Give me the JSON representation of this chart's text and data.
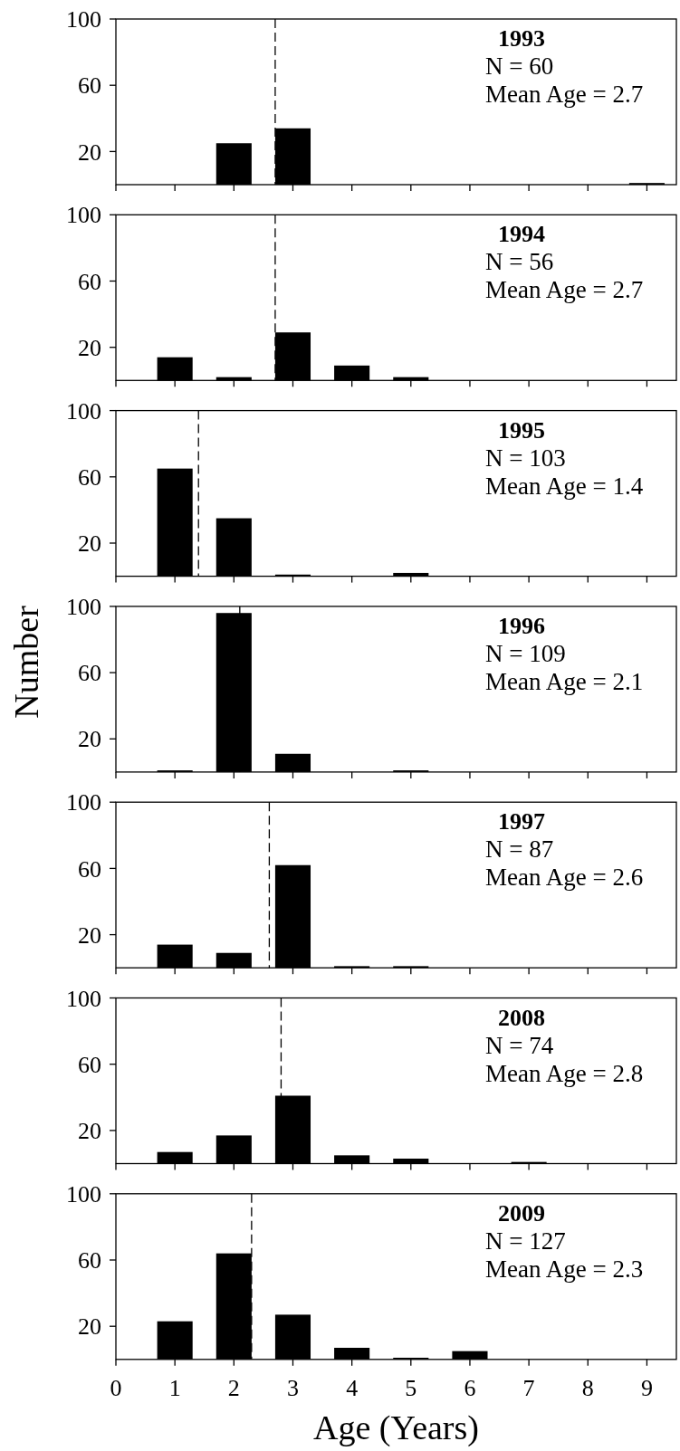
{
  "chart_data": [
    {
      "type": "bar",
      "x": [
        1,
        2,
        3,
        4,
        5,
        6,
        7,
        8,
        9
      ],
      "values": [
        0,
        25,
        34,
        0,
        0,
        0,
        0,
        0,
        1
      ],
      "color": "#000000",
      "xlim": [
        0,
        9.5
      ],
      "xticks": [
        0,
        1,
        2,
        3,
        4,
        5,
        6,
        7,
        8,
        9
      ],
      "ylim": [
        0,
        100
      ],
      "yticks": [
        20,
        60,
        100
      ],
      "tick_labels": "y",
      "grid": false,
      "ref_lines": [
        {
          "axis": "x",
          "value": 2.7,
          "line_style": "dashed"
        }
      ],
      "annotations": [
        "1993",
        "N = 60",
        "Mean Age = 2.7"
      ]
    },
    {
      "type": "bar",
      "x": [
        1,
        2,
        3,
        4,
        5,
        6,
        7,
        8,
        9
      ],
      "values": [
        14,
        2,
        29,
        9,
        2,
        0,
        0,
        0,
        0
      ],
      "color": "#000000",
      "xlim": [
        0,
        9.5
      ],
      "xticks": [
        0,
        1,
        2,
        3,
        4,
        5,
        6,
        7,
        8,
        9
      ],
      "ylim": [
        0,
        100
      ],
      "yticks": [
        20,
        60,
        100
      ],
      "tick_labels": "y",
      "grid": false,
      "ref_lines": [
        {
          "axis": "x",
          "value": 2.7,
          "line_style": "dashed"
        }
      ],
      "annotations": [
        "1994",
        "N = 56",
        "Mean Age = 2.7"
      ]
    },
    {
      "type": "bar",
      "x": [
        1,
        2,
        3,
        4,
        5,
        6,
        7,
        8,
        9
      ],
      "values": [
        65,
        35,
        1,
        0,
        2,
        0,
        0,
        0,
        0
      ],
      "color": "#000000",
      "xlim": [
        0,
        9.5
      ],
      "xticks": [
        0,
        1,
        2,
        3,
        4,
        5,
        6,
        7,
        8,
        9
      ],
      "ylim": [
        0,
        100
      ],
      "yticks": [
        20,
        60,
        100
      ],
      "tick_labels": "y",
      "grid": false,
      "ref_lines": [
        {
          "axis": "x",
          "value": 1.4,
          "line_style": "dashed"
        }
      ],
      "annotations": [
        "1995",
        "N = 103",
        "Mean Age = 1.4"
      ]
    },
    {
      "type": "bar",
      "x": [
        1,
        2,
        3,
        4,
        5,
        6,
        7,
        8,
        9
      ],
      "values": [
        1,
        96,
        11,
        0,
        1,
        0,
        0,
        0,
        0
      ],
      "color": "#000000",
      "xlim": [
        0,
        9.5
      ],
      "xticks": [
        0,
        1,
        2,
        3,
        4,
        5,
        6,
        7,
        8,
        9
      ],
      "ylim": [
        0,
        100
      ],
      "yticks": [
        20,
        60,
        100
      ],
      "tick_labels": "y",
      "grid": false,
      "ylabel": "Number",
      "ref_lines": [
        {
          "axis": "x",
          "value": 2.1,
          "line_style": "dashed"
        }
      ],
      "annotations": [
        "1996",
        "N = 109",
        "Mean Age = 2.1"
      ]
    },
    {
      "type": "bar",
      "x": [
        1,
        2,
        3,
        4,
        5,
        6,
        7,
        8,
        9
      ],
      "values": [
        14,
        9,
        62,
        1,
        1,
        0,
        0,
        0,
        0
      ],
      "color": "#000000",
      "xlim": [
        0,
        9.5
      ],
      "xticks": [
        0,
        1,
        2,
        3,
        4,
        5,
        6,
        7,
        8,
        9
      ],
      "ylim": [
        0,
        100
      ],
      "yticks": [
        20,
        60,
        100
      ],
      "tick_labels": "y",
      "grid": false,
      "ref_lines": [
        {
          "axis": "x",
          "value": 2.6,
          "line_style": "dashed"
        }
      ],
      "annotations": [
        "1997",
        "N = 87",
        "Mean Age = 2.6"
      ]
    },
    {
      "type": "bar",
      "x": [
        1,
        2,
        3,
        4,
        5,
        6,
        7,
        8,
        9
      ],
      "values": [
        7,
        17,
        41,
        5,
        3,
        0,
        1,
        0,
        0
      ],
      "color": "#000000",
      "xlim": [
        0,
        9.5
      ],
      "xticks": [
        0,
        1,
        2,
        3,
        4,
        5,
        6,
        7,
        8,
        9
      ],
      "ylim": [
        0,
        100
      ],
      "yticks": [
        20,
        60,
        100
      ],
      "tick_labels": "y",
      "grid": false,
      "ref_lines": [
        {
          "axis": "x",
          "value": 2.8,
          "line_style": "dashed"
        }
      ],
      "annotations": [
        "2008",
        "N = 74",
        "Mean Age = 2.8"
      ]
    },
    {
      "type": "bar",
      "x": [
        1,
        2,
        3,
        4,
        5,
        6,
        7,
        8,
        9
      ],
      "values": [
        23,
        64,
        27,
        7,
        1,
        5,
        0,
        0,
        0
      ],
      "color": "#000000",
      "xlim": [
        0,
        9.5
      ],
      "xticks": [
        0,
        1,
        2,
        3,
        4,
        5,
        6,
        7,
        8,
        9
      ],
      "ylim": [
        0,
        100
      ],
      "yticks": [
        20,
        60,
        100
      ],
      "grid": false,
      "xlabel": "Age (Years)",
      "ref_lines": [
        {
          "axis": "x",
          "value": 2.3,
          "line_style": "dashed"
        }
      ],
      "annotations": [
        "2009",
        "N = 127",
        "Mean Age = 2.3"
      ]
    }
  ]
}
